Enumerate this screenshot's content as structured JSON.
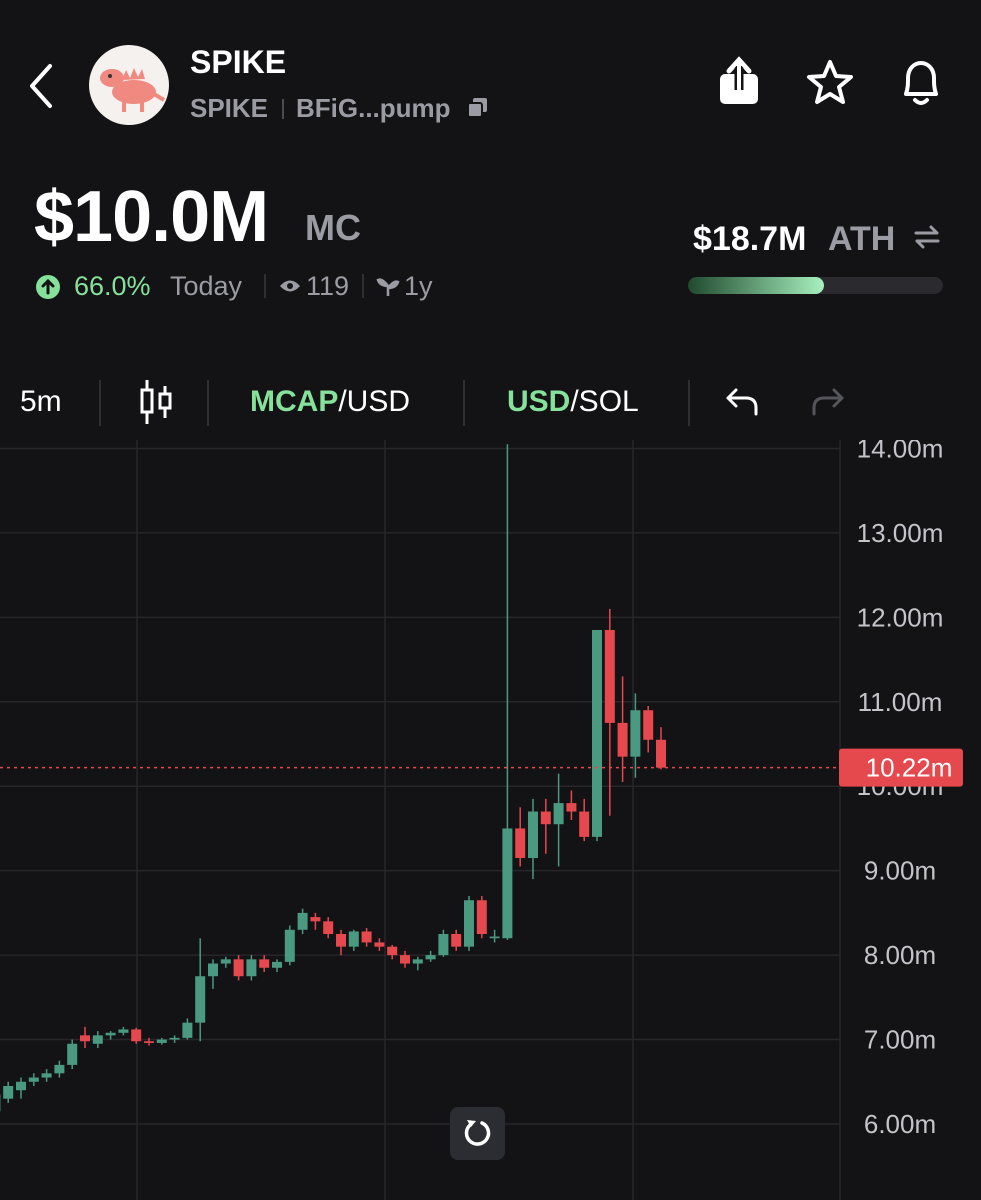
{
  "header": {
    "title": "SPIKE",
    "symbol": "SPIKE",
    "address": "BFiG...pump"
  },
  "market_cap": {
    "value": "$10.0M",
    "unit": "MC",
    "change": "66.0%",
    "period": "Today",
    "watchers": "119",
    "age": "1y"
  },
  "ath": {
    "value": "$18.7M",
    "label": "ATH",
    "progress": 53.5
  },
  "toolbar": {
    "interval": "5m",
    "pair1_active": "MCAP",
    "pair1_rest": "/USD",
    "pair2_active": "USD",
    "pair2_rest": "/SOL"
  },
  "chart_data": {
    "type": "candlestick",
    "up_color": "#4a9a82",
    "down_color": "#e5484d",
    "grid": true,
    "ylim": [
      5.1,
      14.1
    ],
    "yticks": [
      {
        "value": 6,
        "label": "6.00m"
      },
      {
        "value": 7,
        "label": "7.00m"
      },
      {
        "value": 8,
        "label": "8.00m"
      },
      {
        "value": 9,
        "label": "9.00m"
      },
      {
        "value": 10,
        "label": "10.00m"
      },
      {
        "value": 11,
        "label": "11.00m"
      },
      {
        "value": 12,
        "label": "12.00m"
      },
      {
        "value": 13,
        "label": "13.00m"
      },
      {
        "value": 14,
        "label": "14.00m"
      }
    ],
    "price_line": {
      "value": 10.22,
      "label": "10.22m"
    },
    "open": [
      6.15,
      6.3,
      6.4,
      6.5,
      6.55,
      6.6,
      6.7,
      7.05,
      6.95,
      7.05,
      7.08,
      7.12,
      6.98,
      6.96,
      7.0,
      7.02,
      7.2,
      7.75,
      7.9,
      7.95,
      7.75,
      7.95,
      7.85,
      7.92,
      8.3,
      8.45,
      8.4,
      8.25,
      8.1,
      8.28,
      8.15,
      8.1,
      8.0,
      7.9,
      7.95,
      8.0,
      8.25,
      8.1,
      8.65,
      8.2,
      8.2,
      9.5,
      9.15,
      9.7,
      9.55,
      9.8,
      9.7,
      9.4,
      11.85,
      10.75,
      10.35,
      10.9,
      10.55
    ],
    "high": [
      6.4,
      6.5,
      6.55,
      6.6,
      6.65,
      6.75,
      7.0,
      7.15,
      7.1,
      7.1,
      7.15,
      7.14,
      7.02,
      7.02,
      7.05,
      7.25,
      8.2,
      7.95,
      7.98,
      8.0,
      8.0,
      8.0,
      7.95,
      8.35,
      8.55,
      8.5,
      8.45,
      8.3,
      8.3,
      8.32,
      8.2,
      8.12,
      8.05,
      7.98,
      8.05,
      8.3,
      8.3,
      8.7,
      8.7,
      8.3,
      14.05,
      9.75,
      9.85,
      9.85,
      10.15,
      9.95,
      9.85,
      11.85,
      12.1,
      11.3,
      11.1,
      10.95,
      10.7
    ],
    "low": [
      6.1,
      6.25,
      6.3,
      6.45,
      6.5,
      6.55,
      6.65,
      6.9,
      6.9,
      7.0,
      7.05,
      6.95,
      6.93,
      6.94,
      6.96,
      7.0,
      6.98,
      7.6,
      7.85,
      7.7,
      7.7,
      7.8,
      7.8,
      7.88,
      8.25,
      8.3,
      8.2,
      8.0,
      8.05,
      8.1,
      8.05,
      7.95,
      7.85,
      7.82,
      7.92,
      7.98,
      8.05,
      8.05,
      8.2,
      8.15,
      8.18,
      9.05,
      8.9,
      9.2,
      9.05,
      9.6,
      9.35,
      9.35,
      9.65,
      10.05,
      10.1,
      10.4,
      10.2
    ],
    "close": [
      6.35,
      6.45,
      6.5,
      6.55,
      6.6,
      6.7,
      6.95,
      6.98,
      7.05,
      7.08,
      7.12,
      6.98,
      6.96,
      7.0,
      7.02,
      7.2,
      7.75,
      7.9,
      7.95,
      7.75,
      7.95,
      7.85,
      7.92,
      8.3,
      8.5,
      8.4,
      8.25,
      8.1,
      8.28,
      8.15,
      8.1,
      8.0,
      7.9,
      7.95,
      8.0,
      8.25,
      8.1,
      8.65,
      8.25,
      8.22,
      9.5,
      9.15,
      9.7,
      9.55,
      9.8,
      9.7,
      9.4,
      11.85,
      10.75,
      10.35,
      10.9,
      10.55,
      10.22
    ]
  }
}
